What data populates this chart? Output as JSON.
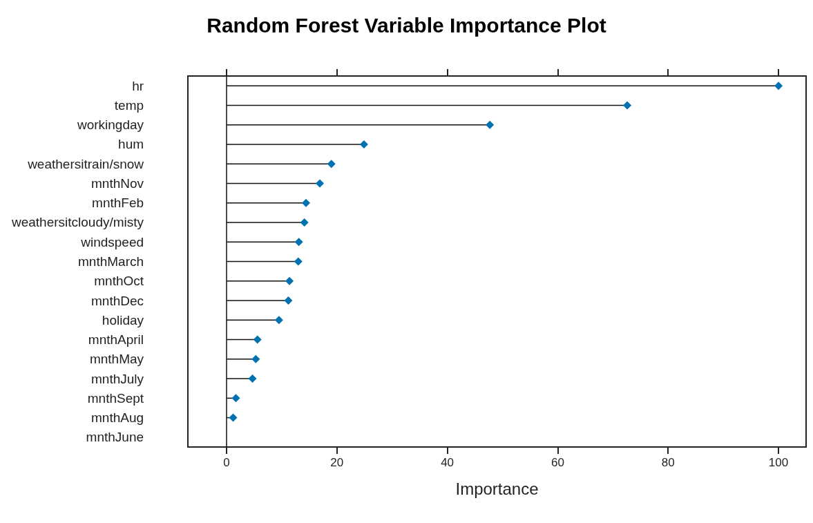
{
  "chart_data": {
    "type": "lollipop",
    "title": "Random Forest Variable Importance Plot",
    "xlabel": "Importance",
    "orientation": "horizontal",
    "categories": [
      "hr",
      "temp",
      "workingday",
      "hum",
      "weathersitrain/snow",
      "mnthNov",
      "mnthFeb",
      "weathersitcloudy/misty",
      "windspeed",
      "mnthMarch",
      "mnthOct",
      "mnthDec",
      "holiday",
      "mnthApril",
      "mnthMay",
      "mnthJuly",
      "mnthSept",
      "mnthAug",
      "mnthJune"
    ],
    "values": [
      100,
      72.6,
      47.7,
      24.9,
      19.0,
      16.9,
      14.4,
      14.1,
      13.1,
      13.0,
      11.4,
      11.2,
      9.5,
      5.6,
      5.3,
      4.7,
      1.7,
      1.2,
      null
    ],
    "color": "#0072b2",
    "marker": "diamond",
    "xlim": [
      -7,
      105
    ],
    "xticks": [
      0,
      20,
      40,
      60,
      80,
      100
    ]
  }
}
